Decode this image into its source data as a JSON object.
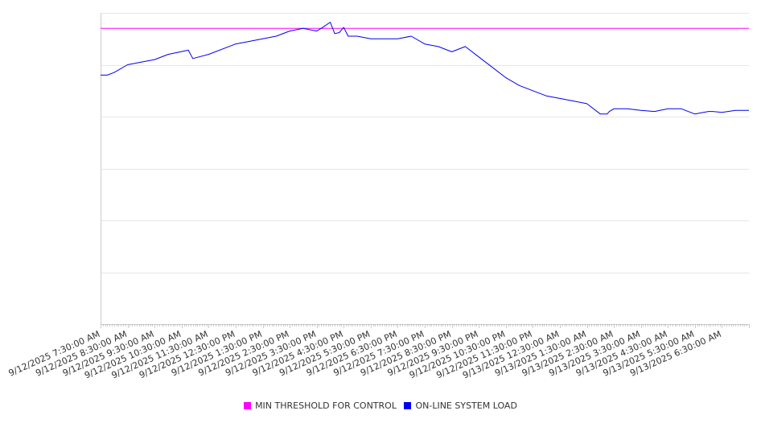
{
  "chart_data": {
    "type": "line",
    "title": "",
    "xlabel": "",
    "ylabel": "",
    "ylim": [
      0,
      6
    ],
    "y_gridlines": [
      0,
      1,
      2,
      3,
      4,
      5,
      6
    ],
    "y_tick_labels_visible": false,
    "x_range": [
      "9/12/2025 7:30:00 AM",
      "9/13/2025 7:30:00 AM"
    ],
    "x_tick_labels": [
      "9/12/2025 7:30:00 AM",
      "9/12/2025 8:30:00 AM",
      "9/12/2025 9:30:00 AM",
      "9/12/2025 10:30:00 AM",
      "9/12/2025 11:30:00 AM",
      "9/12/2025 12:30:00 PM",
      "9/12/2025 1:30:00 PM",
      "9/12/2025 2:30:00 PM",
      "9/12/2025 3:30:00 PM",
      "9/12/2025 4:30:00 PM",
      "9/12/2025 5:30:00 PM",
      "9/12/2025 6:30:00 PM",
      "9/12/2025 7:30:00 PM",
      "9/12/2025 8:30:00 PM",
      "9/12/2025 9:30:00 PM",
      "9/12/2025 10:30:00 PM",
      "9/12/2025 11:30:00 PM",
      "9/13/2025 12:30:00 AM",
      "9/13/2025 1:30:00 AM",
      "9/13/2025 2:30:00 AM",
      "9/13/2025 3:30:00 AM",
      "9/13/2025 4:30:00 AM",
      "9/13/2025 5:30:00 AM",
      "9/13/2025 6:30:00 AM"
    ],
    "minor_ticks_per_hour": 12,
    "grid": true,
    "legend_placement": "bottom-center",
    "series": [
      {
        "name": "MIN THRESHOLD FOR CONTROL",
        "color": "#ff00ff",
        "x": [
          "9/12/2025 7:30:00 AM",
          "9/13/2025 7:30:00 AM"
        ],
        "y": [
          5.7,
          5.7
        ]
      },
      {
        "name": "ON-LINE SYSTEM LOAD",
        "color": "#0000ee",
        "x": [
          "9/12/2025 7:30:00 AM",
          "9/12/2025 7:45:00 AM",
          "9/12/2025 8:00:00 AM",
          "9/12/2025 8:30:00 AM",
          "9/12/2025 9:00:00 AM",
          "9/12/2025 9:30:00 AM",
          "9/12/2025 10:00:00 AM",
          "9/12/2025 10:45:00 AM",
          "9/12/2025 10:55:00 AM",
          "9/12/2025 11:30:00 AM",
          "9/12/2025 12:30:00 PM",
          "9/12/2025 1:30:00 PM",
          "9/12/2025 2:00:00 PM",
          "9/12/2025 2:30:00 PM",
          "9/12/2025 3:00:00 PM",
          "9/12/2025 3:30:00 PM",
          "9/12/2025 3:40:00 PM",
          "9/12/2025 4:00:00 PM",
          "9/12/2025 4:10:00 PM",
          "9/12/2025 4:20:00 PM",
          "9/12/2025 4:30:00 PM",
          "9/12/2025 4:40:00 PM",
          "9/12/2025 5:00:00 PM",
          "9/12/2025 5:30:00 PM",
          "9/12/2025 6:00:00 PM",
          "9/12/2025 6:30:00 PM",
          "9/12/2025 7:00:00 PM",
          "9/12/2025 7:30:00 PM",
          "9/12/2025 8:00:00 PM",
          "9/12/2025 8:30:00 PM",
          "9/12/2025 9:00:00 PM",
          "9/12/2025 9:30:00 PM",
          "9/12/2025 10:00:00 PM",
          "9/12/2025 10:30:00 PM",
          "9/12/2025 11:00:00 PM",
          "9/12/2025 11:30:00 PM",
          "9/13/2025 12:00:00 AM",
          "9/13/2025 12:30:00 AM",
          "9/13/2025 1:00:00 AM",
          "9/13/2025 1:30:00 AM",
          "9/13/2025 2:00:00 AM",
          "9/13/2025 2:15:00 AM",
          "9/13/2025 2:20:00 AM",
          "9/13/2025 2:30:00 AM",
          "9/13/2025 3:00:00 AM",
          "9/13/2025 3:30:00 AM",
          "9/13/2025 4:00:00 AM",
          "9/13/2025 4:30:00 AM",
          "9/13/2025 5:00:00 AM",
          "9/13/2025 5:30:00 AM",
          "9/13/2025 6:00:00 AM",
          "9/13/2025 6:10:00 AM",
          "9/13/2025 6:30:00 AM",
          "9/13/2025 7:00:00 AM",
          "9/13/2025 7:30:00 AM"
        ],
        "y": [
          4.8,
          4.8,
          4.85,
          5.0,
          5.05,
          5.1,
          5.2,
          5.28,
          5.12,
          5.2,
          5.4,
          5.5,
          5.55,
          5.65,
          5.7,
          5.65,
          5.7,
          5.82,
          5.6,
          5.62,
          5.72,
          5.55,
          5.55,
          5.5,
          5.5,
          5.5,
          5.55,
          5.4,
          5.35,
          5.25,
          5.35,
          5.15,
          4.95,
          4.75,
          4.6,
          4.5,
          4.4,
          4.35,
          4.3,
          4.25,
          4.05,
          4.05,
          4.1,
          4.15,
          4.15,
          4.12,
          4.1,
          4.15,
          4.15,
          4.05,
          4.1,
          4.1,
          4.08,
          4.12,
          4.12
        ]
      }
    ]
  }
}
